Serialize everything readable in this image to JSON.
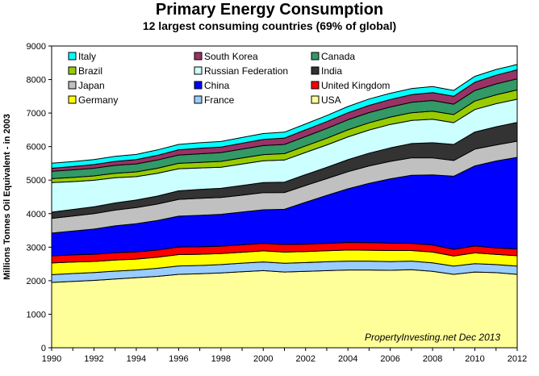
{
  "chart_data": {
    "type": "area",
    "stacked": true,
    "title": "Primary Energy Consumption",
    "subtitle": "12 largest consuming countries (69% of global)",
    "ylabel": "Millions Tonnes Oil Equivalent - in 2003",
    "xlabel": "",
    "credit": "PropertyInvesting.net  Dec 2013",
    "x": [
      1990,
      1991,
      1992,
      1993,
      1994,
      1995,
      1996,
      1997,
      1998,
      1999,
      2000,
      2001,
      2002,
      2003,
      2004,
      2005,
      2006,
      2007,
      2008,
      2009,
      2010,
      2011,
      2012
    ],
    "xlim": [
      1990,
      2012
    ],
    "ylim": [
      0,
      9000
    ],
    "x_ticks": [
      1990,
      1992,
      1994,
      1996,
      1998,
      2000,
      2002,
      2004,
      2006,
      2008,
      2010,
      2012
    ],
    "y_ticks": [
      0,
      1000,
      2000,
      3000,
      4000,
      5000,
      6000,
      7000,
      8000,
      9000
    ],
    "grid": false,
    "legend_position": "top",
    "series": [
      {
        "name": "USA",
        "color": "#ffff99",
        "values": [
          1950,
          1980,
          2010,
          2050,
          2090,
          2130,
          2190,
          2210,
          2230,
          2270,
          2300,
          2260,
          2280,
          2300,
          2320,
          2320,
          2310,
          2330,
          2280,
          2190,
          2260,
          2240,
          2190
        ]
      },
      {
        "name": "France",
        "color": "#99ccff",
        "values": [
          230,
          235,
          235,
          235,
          230,
          240,
          250,
          245,
          250,
          255,
          260,
          260,
          260,
          265,
          265,
          265,
          260,
          255,
          255,
          245,
          250,
          240,
          245
        ]
      },
      {
        "name": "Germany",
        "color": "#ffff00",
        "values": [
          350,
          340,
          330,
          330,
          325,
          330,
          340,
          335,
          330,
          325,
          330,
          335,
          330,
          330,
          330,
          325,
          330,
          315,
          320,
          300,
          320,
          305,
          310
        ]
      },
      {
        "name": "United Kingdom",
        "color": "#ff0000",
        "values": [
          210,
          215,
          215,
          220,
          215,
          215,
          225,
          220,
          220,
          220,
          225,
          225,
          220,
          220,
          225,
          225,
          220,
          215,
          210,
          200,
          205,
          195,
          200
        ]
      },
      {
        "name": "China",
        "color": "#0000ff",
        "values": [
          680,
          710,
          750,
          800,
          840,
          880,
          920,
          940,
          950,
          980,
          1000,
          1050,
          1250,
          1430,
          1600,
          1770,
          1920,
          2030,
          2090,
          2180,
          2390,
          2590,
          2735
        ]
      },
      {
        "name": "Japan",
        "color": "#c0c0c0",
        "values": [
          440,
          450,
          460,
          470,
          480,
          490,
          500,
          510,
          500,
          500,
          510,
          500,
          500,
          500,
          510,
          520,
          520,
          520,
          510,
          470,
          500,
          480,
          480
        ]
      },
      {
        "name": "India",
        "color": "#333333",
        "values": [
          185,
          195,
          205,
          215,
          225,
          240,
          255,
          265,
          275,
          290,
          300,
          310,
          325,
          335,
          360,
          380,
          400,
          425,
          450,
          480,
          510,
          540,
          560
        ]
      },
      {
        "name": "Russian Federation",
        "color": "#ccffff",
        "values": [
          880,
          830,
          790,
          750,
          700,
          680,
          660,
          640,
          630,
          640,
          650,
          660,
          660,
          670,
          680,
          690,
          700,
          690,
          700,
          650,
          670,
          690,
          695
        ]
      },
      {
        "name": "Brazil",
        "color": "#99cc00",
        "values": [
          120,
          125,
          130,
          135,
          140,
          150,
          160,
          165,
          175,
          180,
          185,
          190,
          195,
          200,
          210,
          215,
          220,
          230,
          240,
          240,
          255,
          265,
          275
        ]
      },
      {
        "name": "Canada",
        "color": "#339966",
        "values": [
          220,
          225,
          230,
          235,
          240,
          245,
          250,
          255,
          260,
          265,
          270,
          275,
          280,
          290,
          300,
          305,
          300,
          310,
          320,
          310,
          315,
          325,
          330
        ]
      },
      {
        "name": "South Korea",
        "color": "#993366",
        "values": [
          90,
          100,
          110,
          120,
          130,
          140,
          155,
          165,
          165,
          175,
          185,
          190,
          200,
          205,
          210,
          215,
          225,
          230,
          235,
          235,
          245,
          260,
          270
        ]
      },
      {
        "name": "Italy",
        "color": "#00ffff",
        "values": [
          150,
          150,
          150,
          150,
          150,
          160,
          160,
          165,
          165,
          170,
          175,
          175,
          175,
          180,
          185,
          190,
          185,
          180,
          180,
          175,
          175,
          170,
          160
        ]
      }
    ],
    "legend_order": [
      "Italy",
      "South Korea",
      "Canada",
      "Brazil",
      "Russian Federation",
      "India",
      "Japan",
      "China",
      "United Kingdom",
      "Germany",
      "France",
      "USA"
    ]
  }
}
